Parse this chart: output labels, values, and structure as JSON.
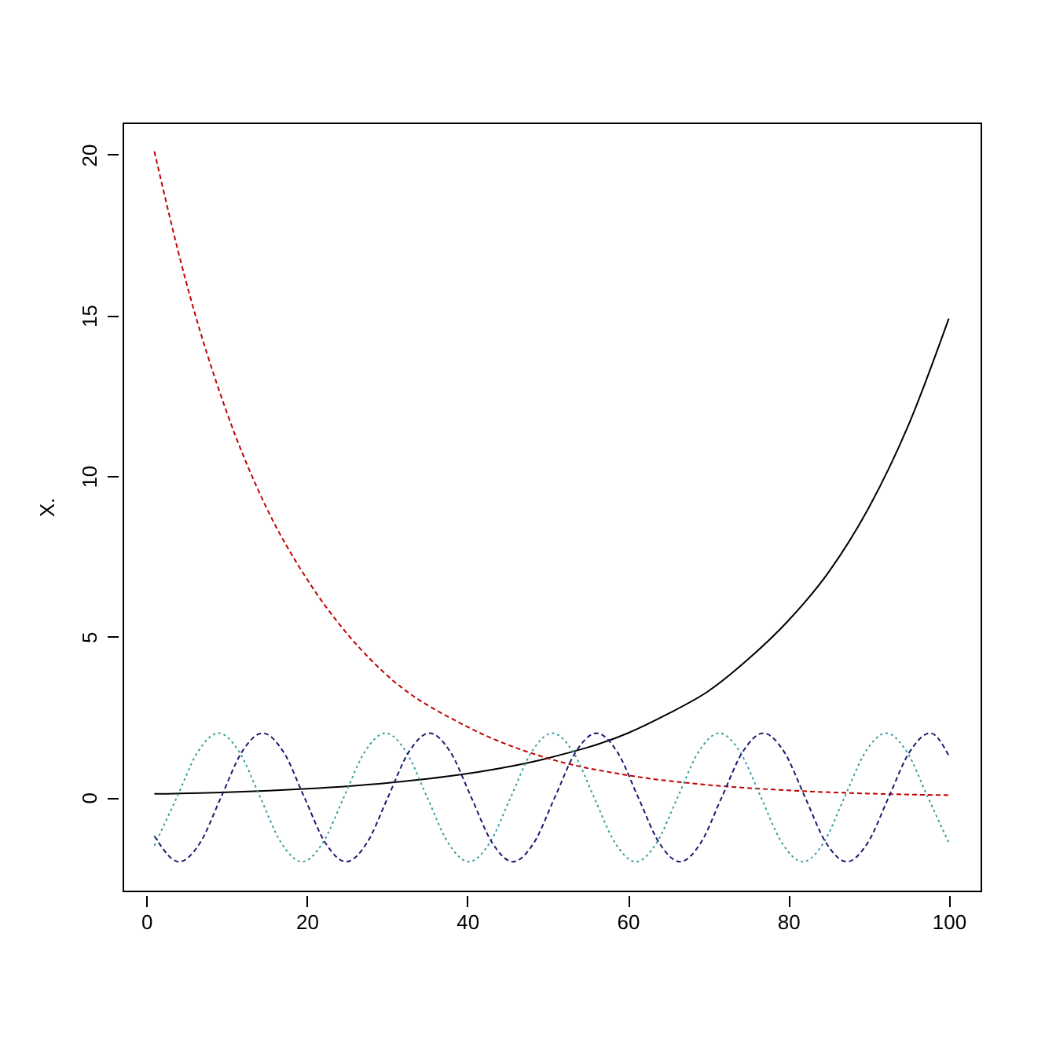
{
  "chart_data": {
    "type": "line",
    "ylabel": "X.",
    "xlim": [
      -2.96,
      103.96
    ],
    "ylim": [
      -2.9,
      21.0
    ],
    "xticks": [
      0,
      20,
      40,
      60,
      80,
      100
    ],
    "yticks": [
      0,
      5,
      10,
      15,
      20
    ],
    "grid": false,
    "marker": "none",
    "series": [
      {
        "color": "#000000",
        "line_style": "solid",
        "x": [
          1,
          10,
          20,
          30,
          40,
          50,
          60,
          65,
          70,
          75,
          80,
          85,
          90,
          95,
          100
        ],
        "values": [
          0.11,
          0.16,
          0.27,
          0.45,
          0.74,
          1.22,
          2.0,
          2.6,
          3.3,
          4.3,
          5.5,
          7.0,
          9.0,
          11.6,
          14.9
        ]
      },
      {
        "color": "#c00000",
        "line_style": "dashed",
        "x": [
          1,
          5,
          10,
          15,
          20,
          25,
          30,
          40,
          50,
          60,
          70,
          80,
          90,
          100
        ],
        "values": [
          20.1,
          16.0,
          12.0,
          9.0,
          6.8,
          5.1,
          3.8,
          2.2,
          1.22,
          0.69,
          0.39,
          0.22,
          0.12,
          0.07
        ]
      },
      {
        "color": "#3a9e9e",
        "line_style": "dotted",
        "x": [
          1,
          3.8,
          6.4,
          9.0,
          11.6,
          14.2,
          16.8,
          19.4,
          22.0,
          24.6,
          27.2,
          29.8,
          32.4,
          35.0,
          37.6,
          40.2,
          42.8,
          45.4,
          48.0,
          50.6,
          53.2,
          55.8,
          58.4,
          61.0,
          63.6,
          66.2,
          68.8,
          71.4,
          74.0,
          76.6,
          79.2,
          81.8,
          84.4,
          87.0,
          89.6,
          92.2,
          94.8,
          97.4,
          100.0
        ],
        "values": [
          -1.5,
          0,
          1.41,
          2,
          1.41,
          0,
          -1.41,
          -2,
          -1.41,
          0,
          1.41,
          2,
          1.41,
          0,
          -1.41,
          -2,
          -1.41,
          0,
          1.41,
          2,
          1.41,
          0,
          -1.41,
          -2,
          -1.41,
          0,
          1.41,
          2,
          1.41,
          0,
          -1.41,
          -2,
          -1.41,
          0,
          1.41,
          2,
          1.41,
          0,
          -1.41
        ]
      },
      {
        "color": "#1a1a6e",
        "line_style": "dashed",
        "x": [
          1,
          4.1,
          6.7,
          9.3,
          11.9,
          14.5,
          17.1,
          19.7,
          22.3,
          24.9,
          27.5,
          30.1,
          32.7,
          35.3,
          37.9,
          40.5,
          43.1,
          45.7,
          48.3,
          50.9,
          53.5,
          56.1,
          58.7,
          61.3,
          63.9,
          66.5,
          69.1,
          71.7,
          74.3,
          76.9,
          79.5,
          82.1,
          84.7,
          87.3,
          89.9,
          92.5,
          95.1,
          97.7,
          100
        ],
        "values": [
          -1.2,
          -2,
          -1.41,
          0,
          1.41,
          2,
          1.41,
          0,
          -1.41,
          -2,
          -1.41,
          0,
          1.41,
          2,
          1.41,
          0,
          -1.41,
          -2,
          -1.41,
          0,
          1.41,
          2,
          1.41,
          0,
          -1.41,
          -2,
          -1.41,
          0,
          1.41,
          2,
          1.41,
          0,
          -1.41,
          -2,
          -1.41,
          0,
          1.41,
          2,
          1.3
        ]
      }
    ]
  }
}
